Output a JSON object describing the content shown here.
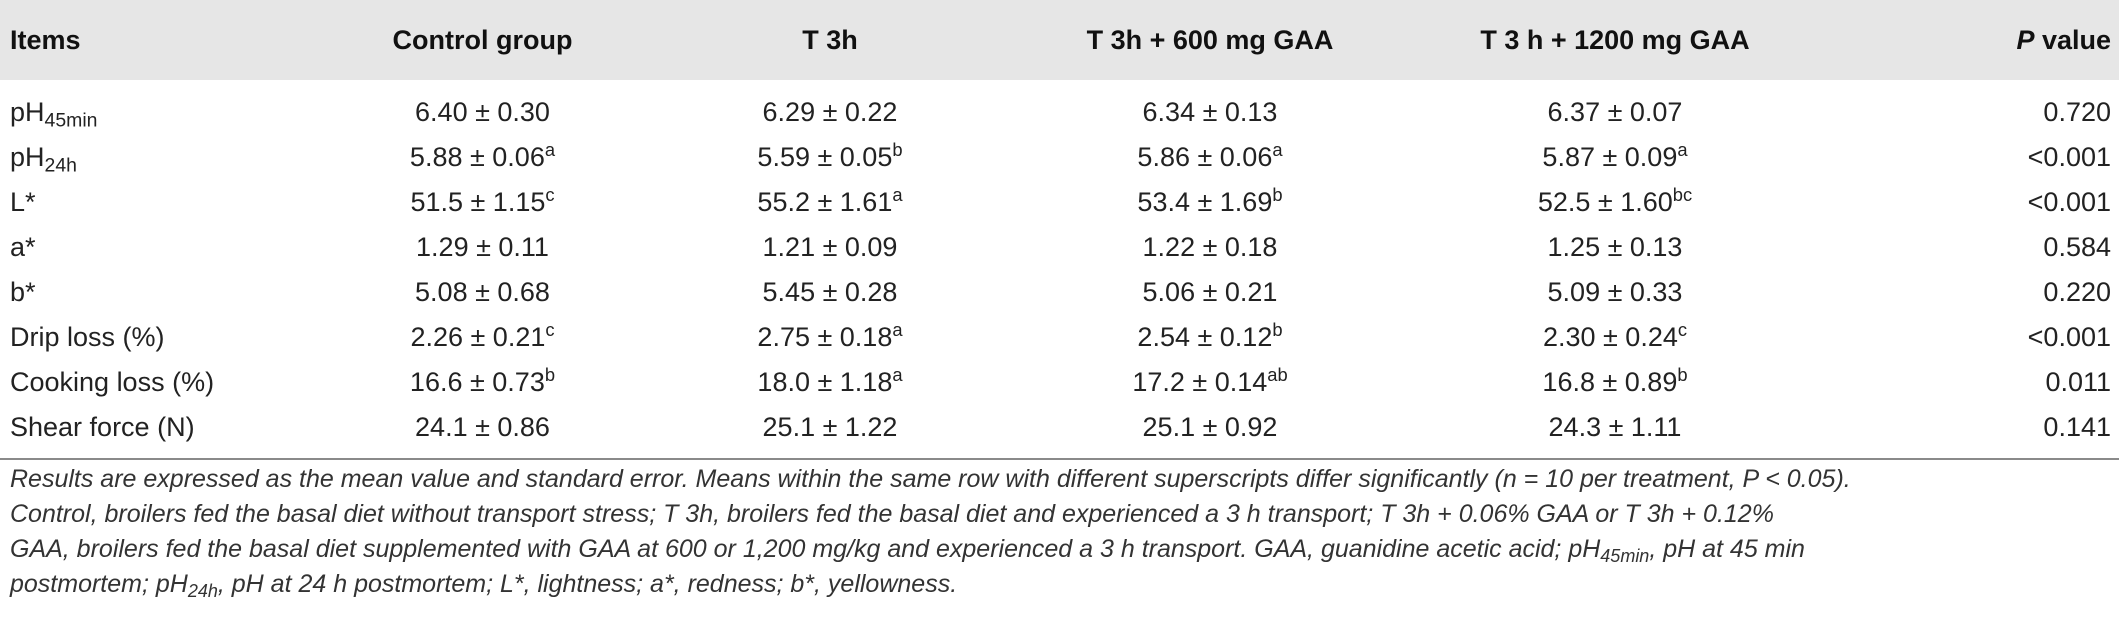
{
  "table": {
    "headers": {
      "items": "Items",
      "control": "Control group",
      "t3h": "T 3h",
      "t3h_600": "T 3h + 600 mg GAA",
      "t3h_1200": "T 3 h + 1200 mg GAA",
      "p_italic": "P",
      "p_rest": " value"
    },
    "rows": [
      {
        "label": "pH",
        "label_sub": "45min",
        "c1": "6.40 ± 0.30",
        "c1_sup": "",
        "c2": "6.29 ± 0.22",
        "c2_sup": "",
        "c3": "6.34 ± 0.13",
        "c3_sup": "",
        "c4": "6.37 ± 0.07",
        "c4_sup": "",
        "p": "0.720"
      },
      {
        "label": "pH",
        "label_sub": "24h",
        "c1": "5.88 ± 0.06",
        "c1_sup": "a",
        "c2": "5.59 ± 0.05",
        "c2_sup": "b",
        "c3": "5.86 ± 0.06",
        "c3_sup": "a",
        "c4": "5.87 ± 0.09",
        "c4_sup": "a",
        "p": "<0.001"
      },
      {
        "label": "L*",
        "label_sub": "",
        "c1": "51.5 ± 1.15",
        "c1_sup": "c",
        "c2": "55.2 ± 1.61",
        "c2_sup": "a",
        "c3": "53.4 ± 1.69",
        "c3_sup": "b",
        "c4": "52.5 ± 1.60",
        "c4_sup": "bc",
        "p": "<0.001"
      },
      {
        "label": "a*",
        "label_sub": "",
        "c1": "1.29 ± 0.11",
        "c1_sup": "",
        "c2": "1.21 ± 0.09",
        "c2_sup": "",
        "c3": "1.22 ± 0.18",
        "c3_sup": "",
        "c4": "1.25 ± 0.13",
        "c4_sup": "",
        "p": "0.584"
      },
      {
        "label": "b*",
        "label_sub": "",
        "c1": "5.08 ± 0.68",
        "c1_sup": "",
        "c2": "5.45 ± 0.28",
        "c2_sup": "",
        "c3": "5.06 ± 0.21",
        "c3_sup": "",
        "c4": "5.09 ± 0.33",
        "c4_sup": "",
        "p": "0.220"
      },
      {
        "label": "Drip loss (%)",
        "label_sub": "",
        "c1": "2.26 ± 0.21",
        "c1_sup": "c",
        "c2": "2.75 ± 0.18",
        "c2_sup": "a",
        "c3": "2.54 ± 0.12",
        "c3_sup": "b",
        "c4": "2.30 ± 0.24",
        "c4_sup": "c",
        "p": "<0.001"
      },
      {
        "label": "Cooking loss (%)",
        "label_sub": "",
        "c1": "16.6 ± 0.73",
        "c1_sup": "b",
        "c2": "18.0 ± 1.18",
        "c2_sup": "a",
        "c3": "17.2 ± 0.14",
        "c3_sup": "ab",
        "c4": "16.8 ± 0.89",
        "c4_sup": "b",
        "p": "0.011"
      },
      {
        "label": "Shear force (N)",
        "label_sub": "",
        "c1": "24.1 ± 0.86",
        "c1_sup": "",
        "c2": "25.1 ± 1.22",
        "c2_sup": "",
        "c3": "25.1 ± 0.92",
        "c3_sup": "",
        "c4": "24.3 ± 1.11",
        "c4_sup": "",
        "p": "0.141"
      }
    ]
  },
  "footnote": {
    "line1": "Results are expressed as the mean value and standard error. Means within the same row with different superscripts differ significantly (n = 10 per treatment, P < 0.05).",
    "line2": "Control, broilers fed the basal diet without transport stress; T 3h, broilers fed the basal diet and experienced a 3 h transport; T 3h + 0.06% GAA or T 3h + 0.12%",
    "line3": "GAA, broilers fed the basal diet supplemented with GAA at 600 or 1,200 mg/kg and experienced a 3 h transport. GAA, guanidine acetic acid; pH",
    "line3_sub": "45min",
    "line3_tail": ", pH at 45 min",
    "line4a": "postmortem; pH",
    "line4_sub": "24h",
    "line4b": ", pH at 24 h postmortem; L*, lightness; a*, redness; b*, yellowness."
  }
}
